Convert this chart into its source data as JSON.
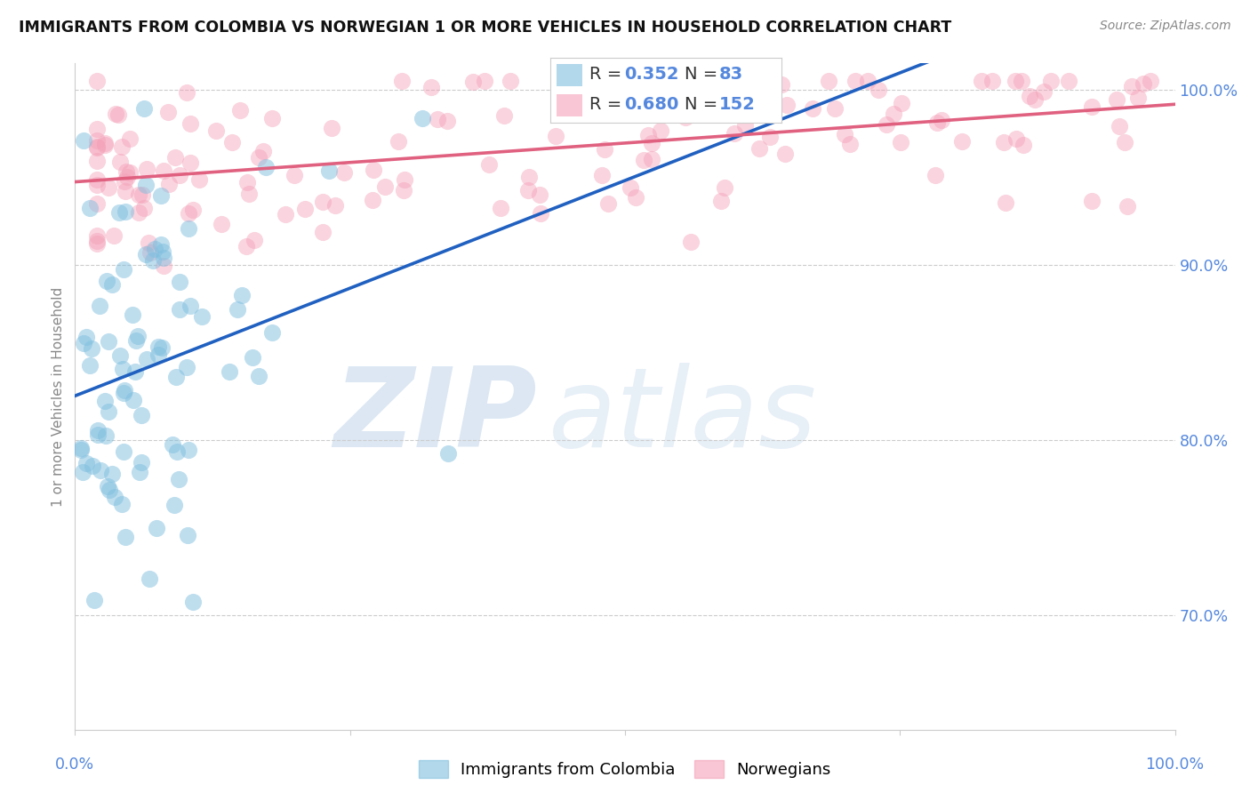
{
  "title": "IMMIGRANTS FROM COLOMBIA VS NORWEGIAN 1 OR MORE VEHICLES IN HOUSEHOLD CORRELATION CHART",
  "source": "Source: ZipAtlas.com",
  "ylabel": "1 or more Vehicles in Household",
  "ytick_values": [
    0.7,
    0.8,
    0.9,
    1.0
  ],
  "xlim": [
    0.0,
    1.0
  ],
  "ylim": [
    0.635,
    1.015
  ],
  "r_blue": 0.352,
  "n_blue": 83,
  "r_pink": 0.68,
  "n_pink": 152,
  "blue_color": "#7fbfdf",
  "pink_color": "#f4a0b8",
  "blue_line_color": "#2060c0",
  "pink_line_color": "#e06080",
  "title_fontsize": 12.5,
  "watermark_zip": "ZIP",
  "watermark_atlas": "atlas",
  "background_color": "#ffffff"
}
